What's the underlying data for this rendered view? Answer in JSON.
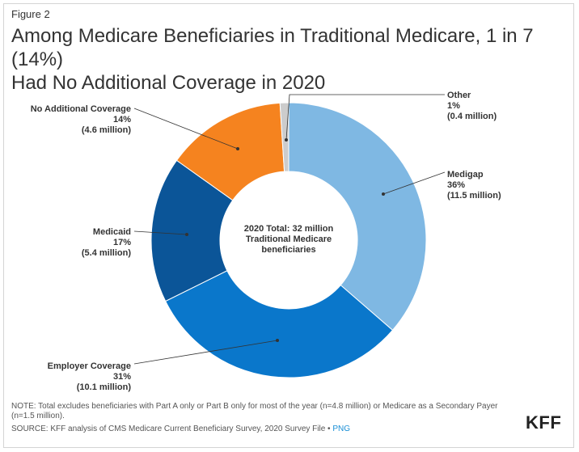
{
  "figure_label": "Figure 2",
  "title_line1": "Among Medicare Beneficiaries in Traditional Medicare, 1 in 7 (14%)",
  "title_line2": "Had No Additional Coverage in 2020",
  "center_text": [
    "2020 Total: 32 million",
    "Traditional Medicare",
    "beneficiaries"
  ],
  "note": "NOTE: Total excludes beneficiaries with Part A only or Part B only for most of the year (n=4.8 million) or Medicare as a Secondary Payer (n=1.5 million).",
  "source_prefix": "SOURCE: KFF analysis of CMS Medicare Current Beneficiary Survey, 2020 Survey File • ",
  "source_link": "PNG",
  "logo": "KFF",
  "chart_data": {
    "type": "pie",
    "donut": true,
    "title": "Among Medicare Beneficiaries in Traditional Medicare, 1 in 7 (14%) Had No Additional Coverage in 2020",
    "slices": [
      {
        "label": "Medigap",
        "percent": 36,
        "percent_text": "36%",
        "value_text": "(11.5 million)",
        "value_millions": 11.5,
        "color": "#7fb8e3"
      },
      {
        "label": "Employer Coverage",
        "percent": 31,
        "percent_text": "31%",
        "value_text": "(10.1 million)",
        "value_millions": 10.1,
        "color": "#0a77cb"
      },
      {
        "label": "Medicaid",
        "percent": 17,
        "percent_text": "17%",
        "value_text": "(5.4 million)",
        "value_millions": 5.4,
        "color": "#0b5598"
      },
      {
        "label": "No Additional Coverage",
        "percent": 14,
        "percent_text": "14%",
        "value_text": "(4.6 million)",
        "value_millions": 4.6,
        "color": "#f5831f"
      },
      {
        "label": "Other",
        "percent": 1,
        "percent_text": "1%",
        "value_text": "(0.4 million)",
        "value_millions": 0.4,
        "color": "#cccccc"
      }
    ]
  }
}
